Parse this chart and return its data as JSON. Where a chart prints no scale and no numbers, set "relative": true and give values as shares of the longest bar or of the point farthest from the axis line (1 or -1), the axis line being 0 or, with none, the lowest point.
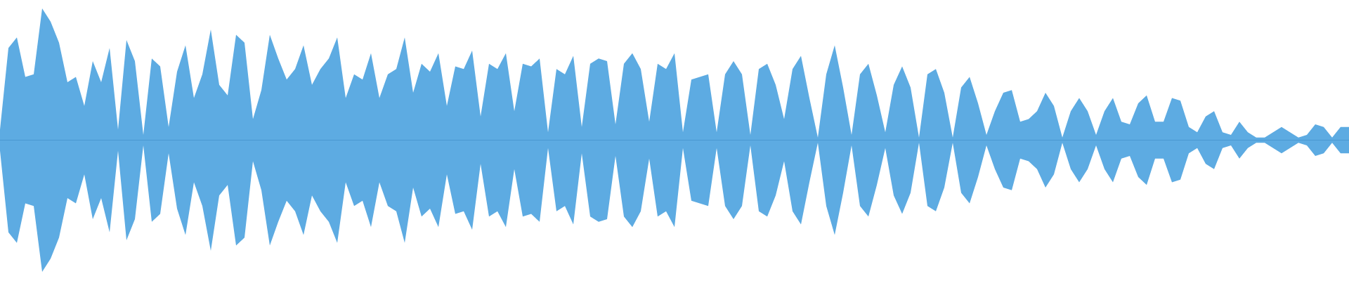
{
  "chart_data": {
    "type": "area",
    "relative": true,
    "legend": false,
    "ref_lines": [
      {
        "axis": "y",
        "value": 0,
        "color": "#4a98d2"
      }
    ],
    "categories": [
      null,
      null,
      null,
      null,
      null,
      null,
      null,
      null,
      null,
      null,
      null,
      null,
      null,
      null,
      null,
      null,
      null,
      null,
      null,
      null,
      null,
      null,
      null,
      null,
      null,
      null,
      null,
      null,
      null,
      null,
      null,
      null,
      null,
      null,
      null,
      null,
      null,
      null,
      null,
      null,
      null,
      null,
      null,
      null,
      null,
      null,
      null,
      null,
      null,
      null,
      null,
      null,
      null,
      null,
      null,
      null,
      null,
      null,
      null,
      null,
      null,
      null,
      null,
      null,
      null,
      null,
      null,
      null,
      null,
      null,
      null,
      null,
      null,
      null,
      null,
      null,
      null,
      null,
      null,
      null,
      null,
      null,
      null,
      null,
      null,
      null,
      null,
      null,
      null,
      null,
      null,
      null,
      null,
      null,
      null,
      null,
      null,
      null,
      null,
      null,
      null,
      null,
      null,
      null,
      null,
      null,
      null,
      null,
      null,
      null,
      null,
      null,
      null,
      null,
      null,
      null,
      null,
      null,
      null,
      null,
      null,
      null,
      null,
      null,
      null,
      null,
      null,
      null,
      null,
      null,
      null,
      null,
      null,
      null,
      null,
      null,
      null,
      null,
      null,
      null,
      null,
      null,
      null,
      null,
      null,
      null,
      null,
      null,
      null,
      null,
      null,
      null,
      null,
      null,
      null,
      null,
      null,
      null,
      null,
      null,
      null
    ],
    "series": [
      {
        "color": "#5dabe2",
        "values": [
          0.08,
          0.7,
          0.78,
          0.48,
          0.5,
          1,
          0.9,
          0.74,
          0.44,
          0.48,
          0.26,
          0.6,
          0.44,
          0.7,
          0.08,
          0.76,
          0.6,
          0.04,
          0.62,
          0.56,
          0.1,
          0.52,
          0.72,
          0.32,
          0.5,
          0.84,
          0.42,
          0.34,
          0.8,
          0.74,
          0.16,
          0.38,
          0.8,
          0.62,
          0.46,
          0.54,
          0.72,
          0.42,
          0.54,
          0.62,
          0.78,
          0.32,
          0.5,
          0.46,
          0.66,
          0.32,
          0.5,
          0.54,
          0.78,
          0.36,
          0.58,
          0.52,
          0.66,
          0.26,
          0.56,
          0.54,
          0.68,
          0.18,
          0.58,
          0.54,
          0.66,
          0.22,
          0.58,
          0.56,
          0.62,
          0.06,
          0.54,
          0.5,
          0.64,
          0.1,
          0.58,
          0.62,
          0.6,
          0.12,
          0.58,
          0.66,
          0.54,
          0.14,
          0.58,
          0.54,
          0.66,
          0.06,
          0.46,
          0.48,
          0.5,
          0.06,
          0.5,
          0.6,
          0.5,
          0.04,
          0.54,
          0.58,
          0.42,
          0.16,
          0.54,
          0.64,
          0.32,
          0.02,
          0.5,
          0.72,
          0.4,
          0.04,
          0.5,
          0.58,
          0.34,
          0.06,
          0.42,
          0.56,
          0.4,
          0.02,
          0.5,
          0.54,
          0.36,
          0.02,
          0.4,
          0.48,
          0.28,
          0.04,
          0.22,
          0.36,
          0.38,
          0.14,
          0.16,
          0.22,
          0.36,
          0.26,
          0.02,
          0.22,
          0.32,
          0.22,
          0.04,
          0.22,
          0.32,
          0.14,
          0.12,
          0.28,
          0.34,
          0.14,
          0.14,
          0.32,
          0.3,
          0.1,
          0.06,
          0.18,
          0.22,
          0.06,
          0.04,
          0.14,
          0.06,
          0.02,
          0.02,
          0.06,
          0.1,
          0.06,
          0.02,
          0.04,
          0.12,
          0.1,
          0.02,
          0.1,
          0.1
        ]
      },
      {
        "color": "#5dabe2",
        "values": [
          -0.08,
          -0.7,
          -0.78,
          -0.48,
          -0.5,
          -1,
          -0.9,
          -0.74,
          -0.44,
          -0.48,
          -0.26,
          -0.6,
          -0.44,
          -0.7,
          -0.08,
          -0.76,
          -0.6,
          -0.04,
          -0.62,
          -0.56,
          -0.1,
          -0.52,
          -0.72,
          -0.32,
          -0.5,
          -0.84,
          -0.42,
          -0.34,
          -0.8,
          -0.74,
          -0.16,
          -0.38,
          -0.8,
          -0.62,
          -0.46,
          -0.54,
          -0.72,
          -0.42,
          -0.54,
          -0.62,
          -0.78,
          -0.32,
          -0.5,
          -0.46,
          -0.66,
          -0.32,
          -0.5,
          -0.54,
          -0.78,
          -0.36,
          -0.58,
          -0.52,
          -0.66,
          -0.26,
          -0.56,
          -0.54,
          -0.68,
          -0.18,
          -0.58,
          -0.54,
          -0.66,
          -0.22,
          -0.58,
          -0.56,
          -0.62,
          -0.06,
          -0.54,
          -0.5,
          -0.64,
          -0.1,
          -0.58,
          -0.62,
          -0.6,
          -0.12,
          -0.58,
          -0.66,
          -0.54,
          -0.14,
          -0.58,
          -0.54,
          -0.66,
          -0.06,
          -0.46,
          -0.48,
          -0.5,
          -0.06,
          -0.5,
          -0.6,
          -0.5,
          -0.04,
          -0.54,
          -0.58,
          -0.42,
          -0.16,
          -0.54,
          -0.64,
          -0.32,
          -0.02,
          -0.5,
          -0.72,
          -0.4,
          -0.04,
          -0.5,
          -0.58,
          -0.34,
          -0.06,
          -0.42,
          -0.56,
          -0.4,
          -0.02,
          -0.5,
          -0.54,
          -0.36,
          -0.02,
          -0.4,
          -0.48,
          -0.28,
          -0.04,
          -0.22,
          -0.36,
          -0.38,
          -0.14,
          -0.16,
          -0.22,
          -0.36,
          -0.26,
          -0.02,
          -0.22,
          -0.32,
          -0.22,
          -0.04,
          -0.22,
          -0.32,
          -0.14,
          -0.12,
          -0.28,
          -0.34,
          -0.14,
          -0.14,
          -0.32,
          -0.3,
          -0.1,
          -0.06,
          -0.18,
          -0.22,
          -0.06,
          -0.04,
          -0.14,
          -0.06,
          -0.02,
          -0.02,
          -0.06,
          -0.1,
          -0.06,
          -0.02,
          -0.04,
          -0.12,
          -0.1,
          -0.02,
          -0.1,
          -0.1
        ]
      }
    ]
  }
}
